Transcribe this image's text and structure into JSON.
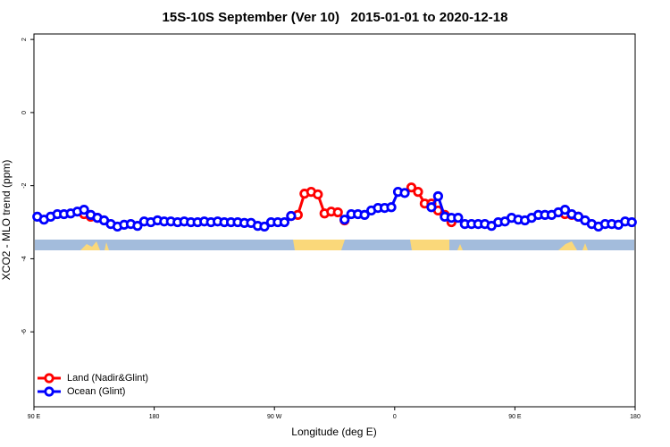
{
  "chart_data": {
    "type": "line",
    "title": "15S-10S September (Ver 10)   2015-01-01 to 2020-12-18",
    "x_label": "Longitude (deg E)",
    "y_label": "XCO2 - MLO trend (ppm)",
    "xlim": [
      -270,
      180
    ],
    "xticks": [
      {
        "value": -270,
        "label": "90 E"
      },
      {
        "value": -180,
        "label": "180"
      },
      {
        "value": -90,
        "label": "90 W"
      },
      0,
      {
        "value": 90,
        "label": "90 E"
      },
      180
    ],
    "ylim": [
      -8.05,
      2.15
    ],
    "yticks": [
      -6,
      -4,
      -2,
      0,
      2
    ],
    "legend": "bottom-left",
    "x": [
      -267.5,
      -262.5,
      -257.5,
      -252.5,
      -247.5,
      -242.5,
      -237.5,
      -232.5,
      -227.5,
      -222.5,
      -217.5,
      -212.5,
      -207.5,
      -202.5,
      -197.5,
      -192.5,
      -187.5,
      -182.5,
      -177.5,
      -172.5,
      -167.5,
      -162.5,
      -157.5,
      -152.5,
      -147.5,
      -142.5,
      -137.5,
      -132.5,
      -127.5,
      -122.5,
      -117.5,
      -112.5,
      -107.5,
      -102.5,
      -97.5,
      -92.5,
      -87.5,
      -82.5,
      -77.5,
      -72.5,
      -67.5,
      -62.5,
      -57.5,
      -52.5,
      -47.5,
      -42.5,
      -37.5,
      -32.5,
      -27.5,
      -22.5,
      -17.5,
      -12.5,
      -7.5,
      -2.5,
      2.5,
      7.5,
      12.5,
      17.5,
      22.5,
      27.5,
      32.5,
      37.5,
      42.5,
      47.5,
      52.5,
      57.5,
      62.5,
      67.5,
      72.5,
      77.5,
      82.5,
      87.5,
      92.5,
      97.5,
      102.5,
      107.5,
      112.5,
      117.5,
      122.5,
      127.5,
      132.5,
      137.5,
      142.5,
      147.5,
      152.5,
      157.5,
      162.5,
      167.5,
      172.5,
      177.5
    ],
    "series": [
      {
        "name": "Land (Nadir&Glint)",
        "color": "#ff0000",
        "values": [
          null,
          null,
          null,
          null,
          null,
          null,
          null,
          -2.78,
          -2.85,
          -2.88,
          null,
          null,
          null,
          null,
          null,
          null,
          null,
          null,
          null,
          null,
          null,
          null,
          null,
          null,
          null,
          null,
          null,
          null,
          null,
          null,
          null,
          null,
          null,
          null,
          null,
          null,
          null,
          null,
          -2.83,
          -2.8,
          -2.22,
          -2.17,
          -2.24,
          -2.76,
          -2.71,
          -2.73,
          -2.95,
          null,
          null,
          null,
          null,
          null,
          null,
          null,
          null,
          null,
          -2.05,
          -2.17,
          -2.49,
          -2.49,
          -2.68,
          -2.8,
          -3.0,
          null,
          null,
          null,
          null,
          null,
          null,
          null,
          null,
          null,
          null,
          null,
          null,
          null,
          null,
          null,
          null,
          -2.78,
          -2.8,
          -2.85,
          null,
          null,
          null,
          null,
          null,
          null,
          null,
          null
        ]
      },
      {
        "name": "Ocean (Glint)",
        "color": "#0000ff",
        "values": [
          -2.85,
          -2.93,
          -2.85,
          -2.78,
          -2.78,
          -2.76,
          -2.71,
          -2.66,
          -2.8,
          -2.88,
          -2.95,
          -3.05,
          -3.12,
          -3.07,
          -3.05,
          -3.1,
          -2.98,
          -3.0,
          -2.95,
          -2.98,
          -2.98,
          -3.0,
          -2.98,
          -3.0,
          -3.0,
          -2.98,
          -3.0,
          -2.98,
          -3.0,
          -3.0,
          -3.0,
          -3.02,
          -3.02,
          -3.1,
          -3.12,
          -3.0,
          -3.0,
          -3.0,
          -2.83,
          null,
          null,
          null,
          null,
          null,
          null,
          null,
          -2.93,
          -2.78,
          -2.78,
          -2.8,
          -2.68,
          -2.61,
          -2.61,
          -2.59,
          -2.17,
          -2.2,
          null,
          null,
          null,
          -2.59,
          -2.29,
          -2.85,
          -2.88,
          -2.88,
          -3.05,
          -3.05,
          -3.05,
          -3.05,
          -3.1,
          -3.0,
          -2.98,
          -2.88,
          -2.93,
          -2.95,
          -2.88,
          -2.8,
          -2.8,
          -2.8,
          -2.73,
          -2.66,
          -2.78,
          -2.85,
          -2.95,
          -3.05,
          -3.12,
          -3.05,
          -3.05,
          -3.07,
          -2.98,
          -3.0
        ]
      }
    ]
  }
}
